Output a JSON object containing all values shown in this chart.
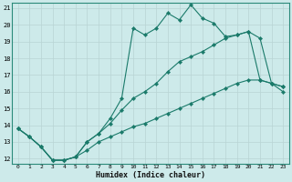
{
  "xlabel": "Humidex (Indice chaleur)",
  "background_color": "#cdeaea",
  "grid_color": "#b8d4d4",
  "line_color": "#1a7a6a",
  "xlim": [
    -0.5,
    23.5
  ],
  "ylim": [
    11.7,
    21.3
  ],
  "xticks": [
    0,
    1,
    2,
    3,
    4,
    5,
    6,
    7,
    8,
    9,
    10,
    11,
    12,
    13,
    14,
    15,
    16,
    17,
    18,
    19,
    20,
    21,
    22,
    23
  ],
  "yticks": [
    12,
    13,
    14,
    15,
    16,
    17,
    18,
    19,
    20,
    21
  ],
  "line1_x": [
    0,
    1,
    2,
    3,
    4,
    5,
    6,
    7,
    8,
    9,
    10,
    11,
    12,
    13,
    14,
    15,
    16,
    17,
    18,
    19,
    20,
    21,
    22,
    23
  ],
  "line1_y": [
    13.8,
    13.3,
    12.7,
    11.9,
    11.9,
    12.1,
    13.0,
    13.5,
    14.4,
    15.6,
    19.8,
    19.4,
    19.8,
    20.7,
    20.3,
    21.2,
    20.4,
    20.1,
    19.3,
    19.4,
    19.6,
    19.2,
    16.5,
    16.3
  ],
  "line2_x": [
    0,
    1,
    2,
    3,
    4,
    5,
    6,
    7,
    8,
    9,
    10,
    11,
    12,
    13,
    14,
    15,
    16,
    17,
    18,
    19,
    20,
    21,
    22,
    23
  ],
  "line2_y": [
    13.8,
    13.3,
    12.7,
    11.9,
    11.9,
    12.1,
    13.0,
    13.5,
    14.1,
    14.9,
    15.6,
    16.0,
    16.5,
    17.2,
    17.8,
    18.1,
    18.4,
    18.8,
    19.2,
    19.4,
    19.6,
    16.7,
    16.5,
    16.3
  ],
  "line3_x": [
    0,
    1,
    2,
    3,
    4,
    5,
    6,
    7,
    8,
    9,
    10,
    11,
    12,
    13,
    14,
    15,
    16,
    17,
    18,
    19,
    20,
    21,
    22,
    23
  ],
  "line3_y": [
    13.8,
    13.3,
    12.7,
    11.9,
    11.9,
    12.1,
    12.5,
    13.0,
    13.3,
    13.6,
    13.9,
    14.1,
    14.4,
    14.7,
    15.0,
    15.3,
    15.6,
    15.9,
    16.2,
    16.5,
    16.7,
    16.7,
    16.5,
    16.0
  ]
}
